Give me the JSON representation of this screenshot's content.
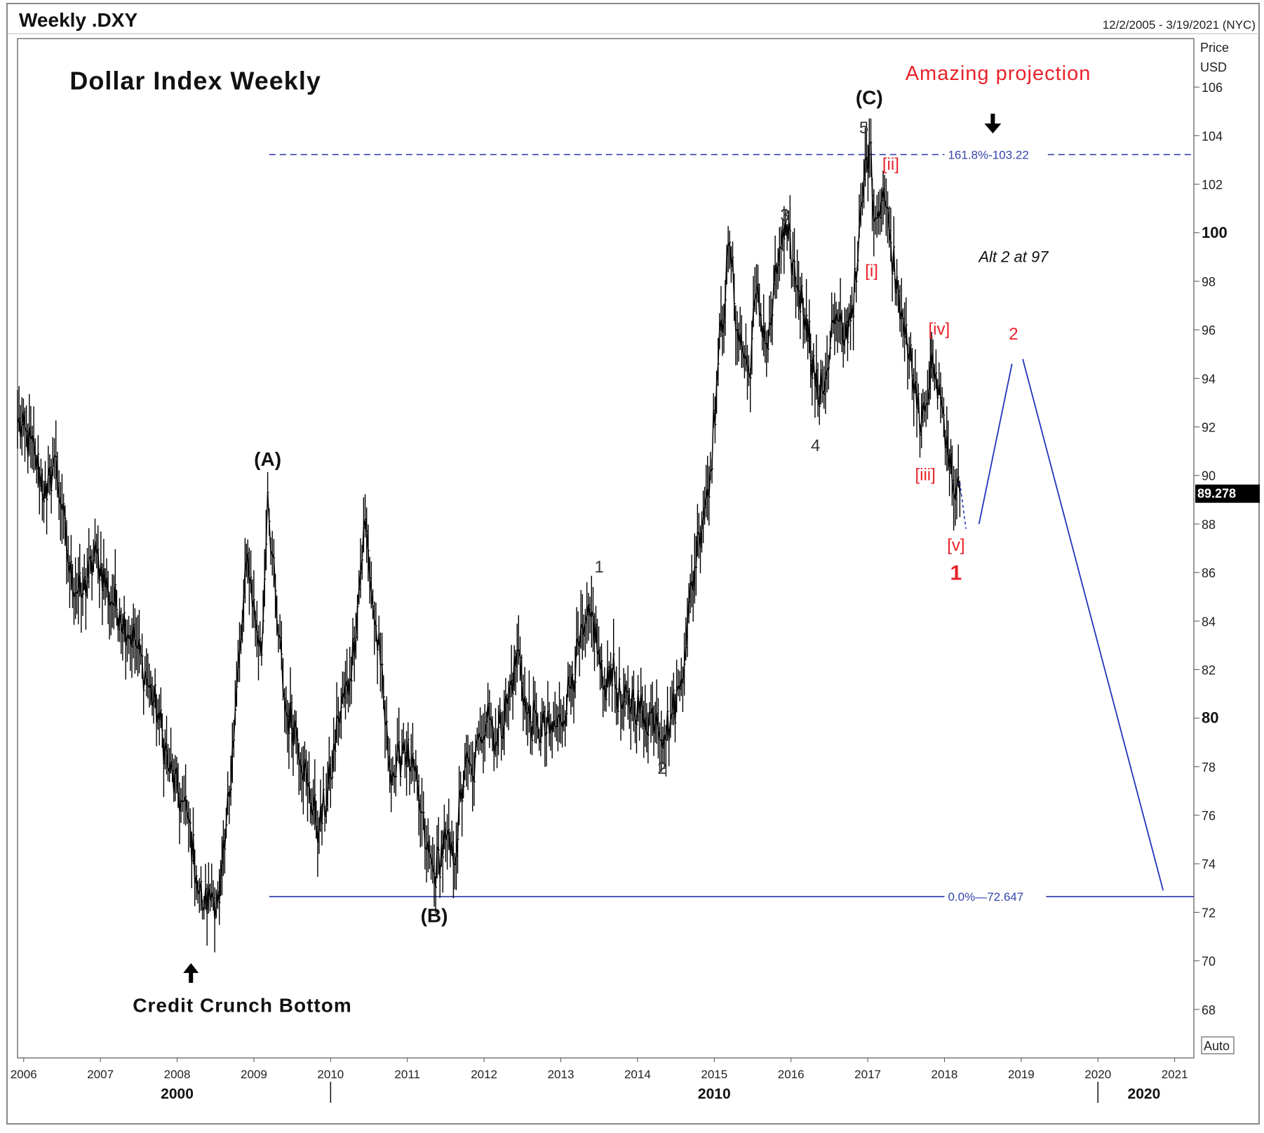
{
  "chart_data": {
    "type": "line",
    "title": "Weekly .DXY",
    "subtitle": "Dollar Index Weekly",
    "date_range": "12/2/2005 - 3/19/2021 (NYC)",
    "ylabel": "Price",
    "yunit": "USD",
    "ylim": [
      66,
      108
    ],
    "xlim": [
      2005.92,
      2021.25
    ],
    "y_ticks": [
      68,
      70,
      72,
      74,
      76,
      78,
      80,
      82,
      84,
      86,
      88,
      90,
      92,
      94,
      96,
      98,
      100,
      102,
      104,
      106
    ],
    "y_bold_ticks": [
      80,
      100
    ],
    "x_ticks": [
      "2006",
      "2007",
      "2008",
      "2009",
      "2010",
      "2011",
      "2012",
      "2013",
      "2014",
      "2015",
      "2016",
      "2017",
      "2018",
      "2019",
      "2020",
      "2021"
    ],
    "x_tick_values": [
      2006,
      2007,
      2008,
      2009,
      2010,
      2011,
      2012,
      2013,
      2014,
      2015,
      2016,
      2017,
      2018,
      2019,
      2020,
      2021
    ],
    "x_major_labels": [
      "2000",
      "2010",
      "2020"
    ],
    "x_major_positions": [
      2008.0,
      2015.0,
      2020.6
    ],
    "x_major_separators": [
      2010.0,
      2020.0
    ],
    "last_price": "89.278",
    "last_price_value": 89.278,
    "auto_label": "Auto",
    "series": [
      {
        "name": "DXY weekly",
        "anchors": [
          [
            2005.92,
            92.2
          ],
          [
            2006.15,
            90.8
          ],
          [
            2006.3,
            89.0
          ],
          [
            2006.4,
            90.8
          ],
          [
            2006.5,
            88.6
          ],
          [
            2006.6,
            86.0
          ],
          [
            2006.75,
            85.0
          ],
          [
            2006.95,
            86.8
          ],
          [
            2007.1,
            85.2
          ],
          [
            2007.25,
            84.4
          ],
          [
            2007.45,
            83.2
          ],
          [
            2007.6,
            81.6
          ],
          [
            2007.75,
            80.2
          ],
          [
            2007.9,
            77.8
          ],
          [
            2008.05,
            76.6
          ],
          [
            2008.15,
            75.8
          ],
          [
            2008.25,
            73.5
          ],
          [
            2008.35,
            72.2
          ],
          [
            2008.45,
            72.8
          ],
          [
            2008.55,
            72.4
          ],
          [
            2008.62,
            74.6
          ],
          [
            2008.72,
            78.8
          ],
          [
            2008.85,
            84.0
          ],
          [
            2008.92,
            86.8
          ],
          [
            2009.02,
            84.0
          ],
          [
            2009.1,
            82.6
          ],
          [
            2009.18,
            89.3
          ],
          [
            2009.3,
            84.0
          ],
          [
            2009.42,
            80.2
          ],
          [
            2009.55,
            79.6
          ],
          [
            2009.7,
            77.2
          ],
          [
            2009.85,
            75.4
          ],
          [
            2010.0,
            77.5
          ],
          [
            2010.1,
            80.0
          ],
          [
            2010.25,
            81.6
          ],
          [
            2010.35,
            84.6
          ],
          [
            2010.45,
            88.2
          ],
          [
            2010.55,
            84.6
          ],
          [
            2010.65,
            82.2
          ],
          [
            2010.75,
            78.4
          ],
          [
            2010.85,
            77.6
          ],
          [
            2010.95,
            79.0
          ],
          [
            2011.05,
            78.0
          ],
          [
            2011.15,
            76.6
          ],
          [
            2011.25,
            74.6
          ],
          [
            2011.35,
            73.6
          ],
          [
            2011.5,
            75.0
          ],
          [
            2011.6,
            74.0
          ],
          [
            2011.75,
            78.0
          ],
          [
            2011.85,
            77.6
          ],
          [
            2011.95,
            79.2
          ],
          [
            2012.05,
            80.6
          ],
          [
            2012.15,
            79.0
          ],
          [
            2012.3,
            80.6
          ],
          [
            2012.45,
            82.8
          ],
          [
            2012.55,
            80.2
          ],
          [
            2012.7,
            79.6
          ],
          [
            2012.85,
            79.4
          ],
          [
            2013.0,
            79.8
          ],
          [
            2013.15,
            81.8
          ],
          [
            2013.3,
            83.4
          ],
          [
            2013.42,
            84.2
          ],
          [
            2013.55,
            81.2
          ],
          [
            2013.65,
            82.2
          ],
          [
            2013.8,
            80.4
          ],
          [
            2013.95,
            80.8
          ],
          [
            2014.1,
            80.0
          ],
          [
            2014.25,
            80.2
          ],
          [
            2014.35,
            79.3
          ],
          [
            2014.45,
            80.2
          ],
          [
            2014.55,
            81.2
          ],
          [
            2014.65,
            84.0
          ],
          [
            2014.8,
            87.6
          ],
          [
            2014.95,
            90.2
          ],
          [
            2015.05,
            94.6
          ],
          [
            2015.2,
            99.6
          ],
          [
            2015.3,
            96.0
          ],
          [
            2015.45,
            94.2
          ],
          [
            2015.55,
            97.5
          ],
          [
            2015.7,
            95.2
          ],
          [
            2015.85,
            99.4
          ],
          [
            2015.95,
            99.8
          ],
          [
            2016.1,
            97.6
          ],
          [
            2016.2,
            96.6
          ],
          [
            2016.35,
            93.2
          ],
          [
            2016.45,
            94.0
          ],
          [
            2016.55,
            96.4
          ],
          [
            2016.7,
            95.6
          ],
          [
            2016.85,
            98.0
          ],
          [
            2016.95,
            102.2
          ],
          [
            2017.02,
            103.7
          ],
          [
            2017.1,
            100.6
          ],
          [
            2017.2,
            101.8
          ],
          [
            2017.3,
            99.6
          ],
          [
            2017.4,
            97.6
          ],
          [
            2017.5,
            96.2
          ],
          [
            2017.6,
            93.4
          ],
          [
            2017.7,
            92.2
          ],
          [
            2017.8,
            93.6
          ],
          [
            2017.85,
            94.6
          ],
          [
            2017.95,
            93.2
          ],
          [
            2018.03,
            91.6
          ],
          [
            2018.1,
            89.8
          ],
          [
            2018.2,
            89.278
          ]
        ]
      }
    ],
    "fib_levels": [
      {
        "label": "161.8%-103.22",
        "value": 103.22,
        "style": "dashed",
        "x_start": 2009.2
      },
      {
        "label": "0.0%—72.647",
        "value": 72.647,
        "style": "solid",
        "x_start": 2009.2
      }
    ],
    "projection": [
      [
        2018.45,
        88.0
      ],
      [
        2018.88,
        94.6
      ]
    ],
    "projection_2": [
      [
        2019.02,
        94.8
      ],
      [
        2020.85,
        72.9
      ]
    ],
    "projection_dash": [
      [
        2018.2,
        89.7
      ],
      [
        2018.28,
        87.8
      ]
    ],
    "wave_labels": [
      {
        "text": "(A)",
        "x": 2009.18,
        "y": 90.4,
        "style": "black-bold"
      },
      {
        "text": "(B)",
        "x": 2011.35,
        "y": 71.6,
        "style": "black-bold"
      },
      {
        "text": "(C)",
        "x": 2017.02,
        "y": 105.3,
        "style": "black-bold"
      },
      {
        "text": "1",
        "x": 2013.5,
        "y": 86.0,
        "style": "black"
      },
      {
        "text": "2",
        "x": 2014.32,
        "y": 77.7,
        "style": "black"
      },
      {
        "text": "3",
        "x": 2015.92,
        "y": 100.5,
        "style": "black"
      },
      {
        "text": "4",
        "x": 2016.32,
        "y": 91.0,
        "style": "black"
      },
      {
        "text": "5",
        "x": 2016.95,
        "y": 104.1,
        "style": "black"
      },
      {
        "text": "[i]",
        "x": 2017.05,
        "y": 98.2,
        "style": "red"
      },
      {
        "text": "[ii]",
        "x": 2017.3,
        "y": 102.6,
        "style": "red"
      },
      {
        "text": "[iii]",
        "x": 2017.75,
        "y": 89.8,
        "style": "red"
      },
      {
        "text": "[iv]",
        "x": 2017.93,
        "y": 95.8,
        "style": "red"
      },
      {
        "text": "[v]",
        "x": 2018.15,
        "y": 86.9,
        "style": "red"
      },
      {
        "text": "1",
        "x": 2018.15,
        "y": 85.7,
        "style": "red-bold"
      },
      {
        "text": "2",
        "x": 2018.9,
        "y": 95.6,
        "style": "red"
      }
    ],
    "annotations": [
      {
        "text": "Dollar Index Weekly",
        "x": 2006.6,
        "y": 105.9,
        "style": "big"
      },
      {
        "text": "Amazing projection",
        "x": 2018.7,
        "y": 106.3,
        "style": "red"
      },
      {
        "text": "Alt 2 at 97",
        "x": 2018.9,
        "y": 98.8,
        "style": "italic"
      },
      {
        "text": "Credit Crunch Bottom",
        "x": 2008.85,
        "y": 67.9,
        "style": "med"
      }
    ],
    "arrows": [
      {
        "name": "arrow-down-icon",
        "x": 2018.63,
        "y": 104.5,
        "direction": "down"
      },
      {
        "name": "arrow-up-icon",
        "x": 2008.18,
        "y": 69.5,
        "direction": "up"
      }
    ]
  }
}
